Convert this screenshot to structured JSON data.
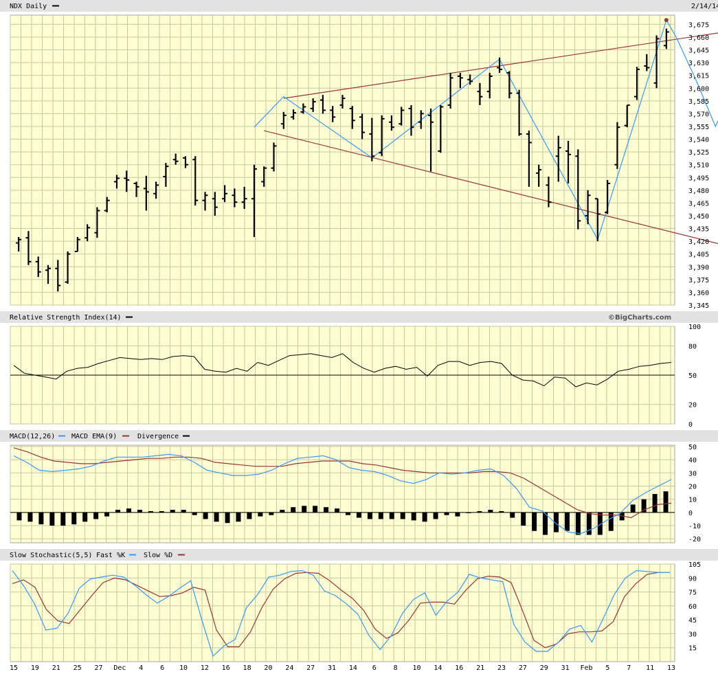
{
  "chart_data": [
    {
      "type": "ohlc",
      "title": "NDX Daily",
      "date_marker": "2/14/14",
      "ylim": [
        3345,
        3685
      ],
      "y_ticks": [
        3345,
        3360,
        3375,
        3390,
        3405,
        3420,
        3435,
        3450,
        3465,
        3480,
        3495,
        3510,
        3525,
        3540,
        3555,
        3570,
        3585,
        3600,
        3615,
        3630,
        3645,
        3660,
        3675
      ],
      "bars": [
        {
          "o": 3418,
          "h": 3425,
          "l": 3408,
          "c": 3422
        },
        {
          "o": 3424,
          "h": 3432,
          "l": 3392,
          "c": 3396
        },
        {
          "o": 3396,
          "h": 3402,
          "l": 3378,
          "c": 3384
        },
        {
          "o": 3386,
          "h": 3392,
          "l": 3370,
          "c": 3388
        },
        {
          "o": 3388,
          "h": 3398,
          "l": 3361,
          "c": 3368
        },
        {
          "o": 3372,
          "h": 3408,
          "l": 3370,
          "c": 3405
        },
        {
          "o": 3408,
          "h": 3425,
          "l": 3408,
          "c": 3422
        },
        {
          "o": 3424,
          "h": 3440,
          "l": 3420,
          "c": 3436
        },
        {
          "o": 3430,
          "h": 3460,
          "l": 3424,
          "c": 3456
        },
        {
          "o": 3456,
          "h": 3472,
          "l": 3454,
          "c": 3468
        },
        {
          "o": 3490,
          "h": 3498,
          "l": 3482,
          "c": 3494
        },
        {
          "o": 3494,
          "h": 3503,
          "l": 3478,
          "c": 3492
        },
        {
          "o": 3488,
          "h": 3490,
          "l": 3472,
          "c": 3484
        },
        {
          "o": 3482,
          "h": 3497,
          "l": 3456,
          "c": 3478
        },
        {
          "o": 3476,
          "h": 3490,
          "l": 3470,
          "c": 3486
        },
        {
          "o": 3496,
          "h": 3512,
          "l": 3484,
          "c": 3508
        },
        {
          "o": 3516,
          "h": 3523,
          "l": 3510,
          "c": 3514
        },
        {
          "o": 3518,
          "h": 3520,
          "l": 3506,
          "c": 3510
        },
        {
          "o": 3516,
          "h": 3520,
          "l": 3462,
          "c": 3468
        },
        {
          "o": 3468,
          "h": 3478,
          "l": 3456,
          "c": 3474
        },
        {
          "o": 3470,
          "h": 3478,
          "l": 3450,
          "c": 3460
        },
        {
          "o": 3470,
          "h": 3486,
          "l": 3466,
          "c": 3476
        },
        {
          "o": 3474,
          "h": 3482,
          "l": 3460,
          "c": 3466
        },
        {
          "o": 3466,
          "h": 3484,
          "l": 3458,
          "c": 3470
        },
        {
          "o": 3470,
          "h": 3510,
          "l": 3425,
          "c": 3505
        },
        {
          "o": 3490,
          "h": 3508,
          "l": 3484,
          "c": 3506
        },
        {
          "o": 3506,
          "h": 3536,
          "l": 3502,
          "c": 3532
        },
        {
          "o": 3558,
          "h": 3572,
          "l": 3552,
          "c": 3568
        },
        {
          "o": 3566,
          "h": 3575,
          "l": 3563,
          "c": 3571
        },
        {
          "o": 3572,
          "h": 3582,
          "l": 3570,
          "c": 3578
        },
        {
          "o": 3576,
          "h": 3588,
          "l": 3572,
          "c": 3584
        },
        {
          "o": 3586,
          "h": 3592,
          "l": 3570,
          "c": 3574
        },
        {
          "o": 3574,
          "h": 3579,
          "l": 3560,
          "c": 3566
        },
        {
          "o": 3580,
          "h": 3592,
          "l": 3576,
          "c": 3588
        },
        {
          "o": 3576,
          "h": 3579,
          "l": 3552,
          "c": 3562
        },
        {
          "o": 3566,
          "h": 3570,
          "l": 3540,
          "c": 3548
        },
        {
          "o": 3546,
          "h": 3565,
          "l": 3514,
          "c": 3520
        },
        {
          "o": 3524,
          "h": 3568,
          "l": 3520,
          "c": 3564
        },
        {
          "o": 3560,
          "h": 3568,
          "l": 3550,
          "c": 3554
        },
        {
          "o": 3558,
          "h": 3578,
          "l": 3556,
          "c": 3574
        },
        {
          "o": 3576,
          "h": 3580,
          "l": 3544,
          "c": 3554
        },
        {
          "o": 3560,
          "h": 3574,
          "l": 3552,
          "c": 3570
        },
        {
          "o": 3568,
          "h": 3576,
          "l": 3502,
          "c": 3560
        },
        {
          "o": 3526,
          "h": 3580,
          "l": 3524,
          "c": 3578
        },
        {
          "o": 3580,
          "h": 3618,
          "l": 3576,
          "c": 3612
        },
        {
          "o": 3614,
          "h": 3618,
          "l": 3600,
          "c": 3612
        },
        {
          "o": 3610,
          "h": 3616,
          "l": 3604,
          "c": 3608
        },
        {
          "o": 3596,
          "h": 3606,
          "l": 3580,
          "c": 3590
        },
        {
          "o": 3596,
          "h": 3618,
          "l": 3588,
          "c": 3614
        },
        {
          "o": 3624,
          "h": 3636,
          "l": 3618,
          "c": 3622
        },
        {
          "o": 3618,
          "h": 3620,
          "l": 3588,
          "c": 3594
        },
        {
          "o": 3594,
          "h": 3598,
          "l": 3544,
          "c": 3546
        },
        {
          "o": 3546,
          "h": 3550,
          "l": 3484,
          "c": 3536
        },
        {
          "o": 3500,
          "h": 3510,
          "l": 3484,
          "c": 3504
        },
        {
          "o": 3486,
          "h": 3496,
          "l": 3460,
          "c": 3466
        },
        {
          "o": 3520,
          "h": 3544,
          "l": 3490,
          "c": 3530
        },
        {
          "o": 3526,
          "h": 3538,
          "l": 3488,
          "c": 3522
        },
        {
          "o": 3520,
          "h": 3528,
          "l": 3434,
          "c": 3444
        },
        {
          "o": 3450,
          "h": 3480,
          "l": 3440,
          "c": 3474
        },
        {
          "o": 3470,
          "h": 3470,
          "l": 3420,
          "c": 3452
        },
        {
          "o": 3454,
          "h": 3492,
          "l": 3452,
          "c": 3488
        },
        {
          "o": 3510,
          "h": 3560,
          "l": 3505,
          "c": 3554
        },
        {
          "o": 3556,
          "h": 3580,
          "l": 3554,
          "c": 3580
        },
        {
          "o": 3590,
          "h": 3625,
          "l": 3586,
          "c": 3622
        },
        {
          "o": 3626,
          "h": 3640,
          "l": 3620,
          "c": 3624
        },
        {
          "o": 3606,
          "h": 3662,
          "l": 3600,
          "c": 3658
        },
        {
          "o": 3650,
          "h": 3670,
          "l": 3646,
          "c": 3666
        }
      ],
      "trend_upper": [
        [
          27,
          3588
        ],
        [
          80,
          3680
        ]
      ],
      "trend_lower": [
        [
          25,
          3550
        ],
        [
          86,
          3375
        ]
      ],
      "zigzag": [
        [
          24,
          3554
        ],
        [
          27,
          3590
        ],
        [
          36,
          3518
        ],
        [
          49,
          3634
        ],
        [
          59,
          3422
        ],
        [
          66,
          3680
        ],
        [
          67,
          3660
        ],
        [
          69,
          3610
        ],
        [
          71,
          3555
        ],
        [
          72,
          3580
        ]
      ]
    },
    {
      "type": "line",
      "title": "Relative Strength Index(14)",
      "credit": "©BigCharts.com",
      "ylim": [
        0,
        100
      ],
      "y_ticks": [
        0,
        20,
        50,
        80,
        100
      ],
      "reference_line": 50,
      "values": [
        60,
        52,
        50,
        48,
        46,
        54,
        57,
        58,
        62,
        65,
        68,
        67,
        66,
        67,
        66,
        69,
        70,
        69,
        56,
        54,
        53,
        57,
        54,
        63,
        60,
        65,
        70,
        71,
        72,
        70,
        68,
        72,
        63,
        57,
        53,
        57,
        59,
        56,
        58,
        49,
        60,
        64,
        64,
        60,
        63,
        64,
        62,
        50,
        45,
        44,
        39,
        48,
        47,
        38,
        42,
        40,
        46,
        54,
        56,
        59,
        60,
        62,
        63
      ]
    },
    {
      "type": "line+bar",
      "title": "MACD(12,26)",
      "legend": [
        "MACD(12,26)",
        "MACD EMA(9)",
        "Divergence"
      ],
      "ylim": [
        -23,
        51
      ],
      "y_ticks": [
        -20,
        -10,
        0,
        10,
        20,
        30,
        40,
        50
      ],
      "macd": [
        43,
        38,
        32,
        31,
        32,
        33,
        35,
        39,
        42,
        42,
        42,
        43,
        44,
        43,
        38,
        32,
        30,
        28,
        28,
        29,
        32,
        37,
        41,
        42,
        43,
        40,
        34,
        32,
        31,
        28,
        24,
        22,
        25,
        30,
        29,
        30,
        32,
        33,
        28,
        18,
        4,
        1,
        -8,
        -15,
        -16,
        -12,
        -6,
        -1,
        9,
        15,
        20,
        25
      ],
      "ema": [
        49,
        46,
        42,
        39,
        38,
        37,
        37,
        38,
        39,
        40,
        41,
        41,
        42,
        42,
        41,
        38,
        37,
        36,
        35,
        35,
        35,
        37,
        38,
        39,
        39,
        39,
        37,
        36,
        34,
        32,
        31,
        30,
        30,
        30,
        30,
        31,
        31,
        30,
        26,
        20,
        14,
        8,
        2,
        -1,
        -2,
        -2,
        -4,
        2,
        6,
        7
      ],
      "divergence": [
        -6,
        -7,
        -9,
        -10,
        -10,
        -9,
        -7,
        -5,
        -3,
        2,
        3,
        2,
        1,
        1,
        2,
        2,
        -2,
        -5,
        -7,
        -8,
        -7,
        -5,
        -3,
        -2,
        2,
        4,
        5,
        5,
        4,
        3,
        -2,
        -4,
        -5,
        -5,
        -5,
        -5,
        -6,
        -7,
        -5,
        -2,
        -3,
        0,
        1,
        2,
        1,
        -4,
        -10,
        -14,
        -17,
        -15,
        -14,
        -17,
        -17,
        -17,
        -14,
        -6,
        6,
        10,
        14,
        16
      ]
    },
    {
      "type": "line",
      "title": "Slow Stochastic(5,5)",
      "legend": [
        "Fast %K",
        "Slow %D"
      ],
      "ylim": [
        0,
        105
      ],
      "y_ticks": [
        0,
        15,
        30,
        45,
        60,
        75,
        90,
        105
      ],
      "fast_k": [
        98,
        82,
        62,
        34,
        36,
        52,
        79,
        89,
        91,
        93,
        91,
        82,
        72,
        63,
        70,
        79,
        87,
        45,
        6,
        17,
        24,
        58,
        72,
        91,
        93,
        97,
        98,
        93,
        76,
        71,
        62,
        51,
        28,
        13,
        28,
        52,
        67,
        74,
        50,
        65,
        75,
        94,
        90,
        88,
        86,
        40,
        21,
        11,
        11,
        21,
        35,
        39,
        21,
        46,
        72,
        90,
        98,
        97,
        96,
        96
      ],
      "slow_d": [
        84,
        88,
        80,
        56,
        44,
        41,
        56,
        71,
        85,
        90,
        88,
        82,
        76,
        70,
        71,
        74,
        80,
        77,
        34,
        16,
        16,
        32,
        58,
        78,
        89,
        95,
        96,
        95,
        87,
        77,
        68,
        55,
        35,
        25,
        31,
        45,
        63,
        64,
        64,
        62,
        77,
        89,
        92,
        91,
        85,
        55,
        23,
        15,
        19,
        30,
        32,
        32,
        33,
        43,
        70,
        84,
        94,
        96,
        96
      ]
    }
  ],
  "x_labels": [
    "15",
    "19",
    "21",
    "25",
    "27",
    "Dec",
    "4",
    "6",
    "10",
    "12",
    "16",
    "18",
    "20",
    "24",
    "27",
    "31",
    "14",
    "6",
    "8",
    "10",
    "14",
    "16",
    "21",
    "23",
    "27",
    "29",
    "31",
    "Feb",
    "5",
    "7",
    "11",
    "13"
  ]
}
